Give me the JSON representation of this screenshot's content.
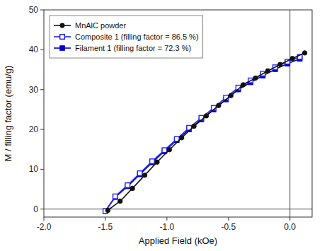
{
  "chart_data": {
    "type": "line",
    "xlabel": "Applied Field (kOe)",
    "ylabel": "M / filling factor (emu/g)",
    "xlim": [
      -2.0,
      0.18
    ],
    "ylim": [
      -2,
      50
    ],
    "xticks": [
      {
        "value": -2.0,
        "label": "-2.0"
      },
      -1.5,
      {
        "value": -1.0,
        "label": "-1.0"
      },
      -0.5,
      {
        "value": 0.0,
        "label": "0.0"
      }
    ],
    "yticks": [
      0,
      10,
      20,
      30,
      40,
      50
    ],
    "hlines": [
      0.0
    ],
    "vlines": [
      0.0
    ],
    "legend": "upper left",
    "series": [
      {
        "name": "MnAlC powder",
        "color": "#111111",
        "marker": "circle",
        "x": [
          -1.48,
          -1.38,
          -1.28,
          -1.18,
          -1.08,
          -0.98,
          -0.88,
          -0.78,
          -0.68,
          -0.58,
          -0.48,
          -0.38,
          -0.28,
          -0.18,
          -0.08,
          0.02,
          0.12
        ],
        "values": [
          -0.3,
          2.0,
          5.2,
          8.5,
          11.8,
          14.9,
          17.9,
          20.8,
          23.4,
          26.0,
          28.5,
          31.2,
          32.9,
          34.7,
          36.3,
          37.8,
          39.2
        ]
      },
      {
        "name": "Composite 1 (filling factor = 86.5 %)",
        "color": "#2222ee",
        "marker": "square-open",
        "x": [
          -1.5,
          -1.42,
          -1.32,
          -1.22,
          -1.12,
          -1.02,
          -0.92,
          -0.82,
          -0.72,
          -0.62,
          -0.52,
          -0.42,
          -0.32,
          -0.22,
          -0.12,
          -0.02,
          0.08
        ],
        "values": [
          -0.5,
          3.2,
          6.0,
          9.0,
          12.0,
          14.8,
          17.6,
          20.4,
          22.9,
          25.4,
          28.0,
          30.5,
          32.3,
          34.0,
          35.6,
          37.0,
          38.2
        ]
      },
      {
        "name": "Filament 1 (filling factor = 72.3 %)",
        "color": "#0000cc",
        "marker": "square",
        "x": [
          -1.5,
          -1.42,
          -1.32,
          -1.22,
          -1.12,
          -1.02,
          -0.92,
          -0.82,
          -0.72,
          -0.62,
          -0.52,
          -0.42,
          -0.32,
          -0.22,
          -0.12,
          -0.02,
          0.08
        ],
        "values": [
          -0.5,
          3.0,
          5.7,
          8.7,
          11.7,
          14.5,
          17.3,
          20.0,
          22.5,
          25.0,
          27.5,
          30.0,
          31.8,
          33.5,
          35.1,
          36.5,
          37.7
        ]
      }
    ]
  }
}
